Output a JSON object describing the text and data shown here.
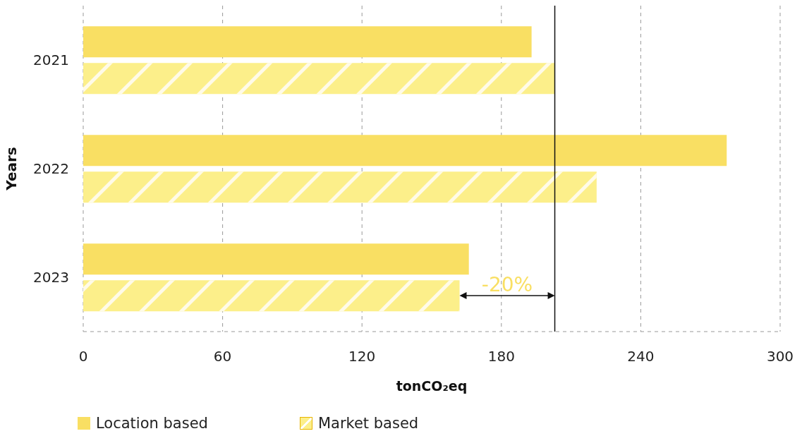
{
  "chart_data": {
    "type": "bar",
    "orientation": "horizontal",
    "xlabel": "tonCO₂eq",
    "ylabel": "Years",
    "categories": [
      "2021",
      "2022",
      "2023"
    ],
    "series": [
      {
        "name": "Location based",
        "color": "#f9df63",
        "values": [
          193,
          277,
          166
        ]
      },
      {
        "name": "Market based",
        "color": "#fcef8a",
        "values": [
          203,
          221,
          162
        ]
      }
    ],
    "xlim": [
      0,
      300
    ],
    "xticks": [
      0,
      60,
      120,
      180,
      240,
      300
    ],
    "grid": "x",
    "legend": "bottom",
    "ref_lines": [
      {
        "axis": "x",
        "value": 203
      }
    ],
    "annotations": [
      "-20%"
    ]
  }
}
